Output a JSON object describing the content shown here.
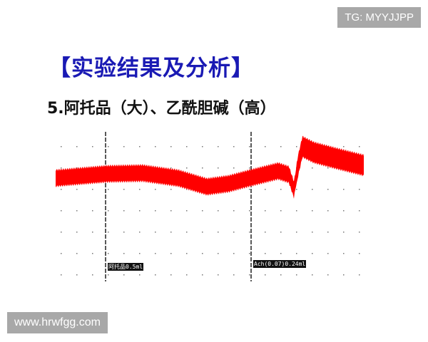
{
  "watermarks": {
    "top": "TG: MYYJJPP",
    "bottom": "www.hrwfgg.com"
  },
  "slide": {
    "title": "【实验结果及分析】",
    "subtitle": "5.阿托品（大）、乙酰胆碱（高）"
  },
  "recording": {
    "trace_color": "#ff0000",
    "markers": [
      {
        "label": "阿托品0.5ml"
      },
      {
        "label": "Ach(0.07)0.24ml"
      }
    ]
  }
}
